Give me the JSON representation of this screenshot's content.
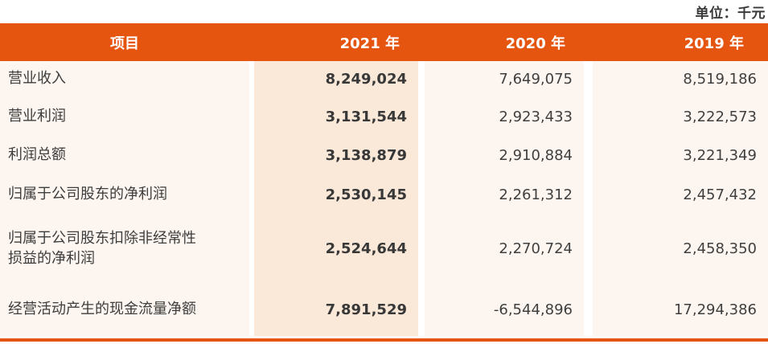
{
  "unit_label": "单位：千元",
  "colors": {
    "header_bg": "#e6550f",
    "highlight_column_bg": "#fae8d9",
    "row_bg": "#fdf6f0",
    "header_text": "#ffffff",
    "body_text": "#3d3d3d",
    "bottom_rule": "#e6550f"
  },
  "table": {
    "columns": [
      "项目",
      "2021 年",
      "2020 年",
      "2019 年"
    ],
    "highlighted_column": "2021 年",
    "rows": [
      {
        "label": "营业收入",
        "values": [
          "8,249,024",
          "7,649,075",
          "8,519,186"
        ]
      },
      {
        "label": "营业利润",
        "values": [
          "3,131,544",
          "2,923,433",
          "3,222,573"
        ]
      },
      {
        "label": "利润总额",
        "values": [
          "3,138,879",
          "2,910,884",
          "3,221,349"
        ]
      },
      {
        "label": "归属于公司股东的净利润",
        "values": [
          "2,530,145",
          "2,261,312",
          "2,457,432"
        ]
      },
      {
        "label": "归属于公司股东扣除非经常性\n损益的净利润",
        "values": [
          "2,524,644",
          "2,270,724",
          "2,458,350"
        ]
      },
      {
        "label": "经营活动产生的现金流量净额",
        "values": [
          "7,891,529",
          "-6,544,896",
          "17,294,386"
        ]
      }
    ]
  }
}
